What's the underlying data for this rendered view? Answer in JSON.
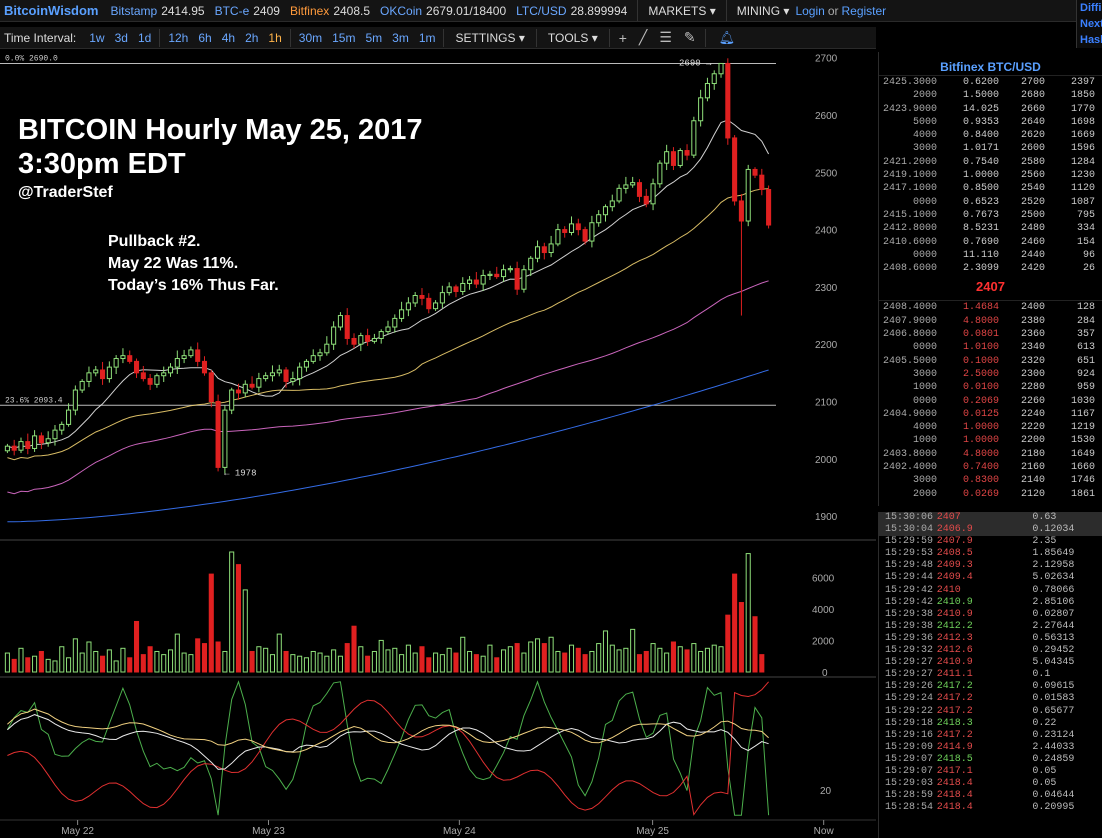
{
  "topbar": {
    "logo": "BitcoinWisdom",
    "exchanges": [
      {
        "name": "Bitstamp",
        "price": "2414.95",
        "active": false
      },
      {
        "name": "BTC-e",
        "price": "2409",
        "active": false
      },
      {
        "name": "Bitfinex",
        "price": "2408.5",
        "active": true
      },
      {
        "name": "OKCoin",
        "price": "2679.01/18400",
        "active": false
      },
      {
        "name": "LTC/USD",
        "price": "28.899994",
        "active": false
      }
    ],
    "markets_label": "MARKETS",
    "mining_label": "MINING",
    "login": "Login",
    "or": "or",
    "register": "Register",
    "side_items": [
      "Diffi",
      "Next",
      "Hash"
    ]
  },
  "toolbar": {
    "interval_label": "Time Interval:",
    "intervals": [
      {
        "label": "1w",
        "active": false
      },
      {
        "label": "3d",
        "active": false
      },
      {
        "label": "1d",
        "active": false
      },
      {
        "label": "12h",
        "active": false
      },
      {
        "label": "6h",
        "active": false
      },
      {
        "label": "4h",
        "active": false
      },
      {
        "label": "2h",
        "active": false
      },
      {
        "label": "1h",
        "active": true
      },
      {
        "label": "30m",
        "active": false
      },
      {
        "label": "15m",
        "active": false
      },
      {
        "label": "5m",
        "active": false
      },
      {
        "label": "3m",
        "active": false
      },
      {
        "label": "1m",
        "active": false
      }
    ],
    "settings_label": "SETTINGS",
    "tools_label": "TOOLS",
    "tool_icons": [
      "plus-icon",
      "line-tool-icon",
      "fib-tool-icon",
      "pen-tool-icon",
      "bell-icon"
    ]
  },
  "overlay": {
    "headline": "BITCOIN Hourly May 25, 2017",
    "headline2": "3:30pm EDT",
    "handle": "@TraderStef",
    "note": [
      "Pullback #2.",
      "May 22 Was 11%.",
      "Today’s 16% Thus Far."
    ]
  },
  "chart_data": [
    {
      "type": "candlestick",
      "title": "",
      "ylim": [
        1860,
        2710
      ],
      "y_ticks": [
        1900,
        2000,
        2100,
        2200,
        2300,
        2400,
        2500,
        2600,
        2700
      ],
      "x_labels": [
        "May 22",
        "May 23",
        "May 24",
        "May 25",
        "Now"
      ],
      "colors": {
        "up": "#8fe07a",
        "down": "#e02020",
        "ma1": "#e8e8e8",
        "ma2": "#f0d070",
        "ma3": "#e070d0",
        "ma4": "#3a78ff"
      },
      "closes": [
        2022,
        2015,
        2030,
        2018,
        2040,
        2028,
        2035,
        2050,
        2060,
        2085,
        2120,
        2135,
        2150,
        2155,
        2140,
        2160,
        2175,
        2180,
        2170,
        2150,
        2140,
        2130,
        2145,
        2150,
        2160,
        2175,
        2180,
        2190,
        2170,
        2150,
        2100,
        1985,
        2085,
        2120,
        2115,
        2130,
        2125,
        2140,
        2145,
        2150,
        2155,
        2135,
        2140,
        2160,
        2170,
        2180,
        2185,
        2200,
        2230,
        2250,
        2210,
        2200,
        2215,
        2205,
        2210,
        2222,
        2230,
        2245,
        2260,
        2272,
        2285,
        2280,
        2262,
        2272,
        2290,
        2300,
        2292,
        2306,
        2312,
        2305,
        2320,
        2322,
        2318,
        2330,
        2332,
        2296,
        2330,
        2350,
        2370,
        2360,
        2375,
        2400,
        2395,
        2410,
        2400,
        2380,
        2412,
        2426,
        2440,
        2450,
        2472,
        2478,
        2482,
        2458,
        2445,
        2480,
        2516,
        2536,
        2512,
        2538,
        2530,
        2590,
        2630,
        2655,
        2672,
        2690,
        2560,
        2450,
        2415,
        2505,
        2495,
        2470,
        2408
      ],
      "marks": [
        {
          "label": "0.0% 2690.0",
          "value": 2690
        },
        {
          "label": "23.6% 2093.4",
          "value": 2093.4
        },
        {
          "label": "2690 →",
          "value": 2690
        },
        {
          "label": "← 1978",
          "value": 1978
        }
      ]
    },
    {
      "type": "bar",
      "title": "Volume",
      "ylim": [
        0,
        7600
      ],
      "y_ticks": [
        0,
        2000,
        4000,
        6000
      ],
      "values": [
        1200,
        800,
        1500,
        900,
        1000,
        1300,
        800,
        700,
        1600,
        900,
        2100,
        1200,
        1900,
        1300,
        1000,
        1400,
        700,
        1500,
        900,
        3200,
        1100,
        1600,
        1300,
        1100,
        1400,
        2400,
        1200,
        1100,
        2100,
        1800,
        6200,
        1900,
        1300,
        7600,
        6800,
        5200,
        1300,
        1600,
        1500,
        1100,
        2400,
        1300,
        1100,
        1000,
        900,
        1300,
        1200,
        1000,
        1400,
        1000,
        1800,
        2900,
        1600,
        1000,
        1300,
        2000,
        1400,
        1500,
        1100,
        1700,
        1200,
        1600,
        900,
        1200,
        1100,
        1500,
        1200,
        2200,
        1300,
        1100,
        1000,
        1700,
        900,
        1400,
        1600,
        1800,
        1200,
        1900,
        2100,
        1800,
        2200,
        1300,
        1200,
        1700,
        1500,
        1100,
        1300,
        1800,
        2600,
        1700,
        1400,
        1500,
        2700,
        1100,
        1300,
        1800,
        1500,
        1200,
        1900,
        1600,
        1400,
        1800,
        1300,
        1500,
        1700,
        1600,
        3600,
        6200,
        4400,
        7500,
        3500,
        1100
      ]
    },
    {
      "type": "line",
      "title": "",
      "ylim": [
        0,
        100
      ],
      "y_ticks": [
        20
      ],
      "series_colors": [
        "#4caf4c",
        "#e03030",
        "#e8e8e8",
        "#f0d080"
      ]
    }
  ],
  "orderbook": {
    "title": "Bitfinex BTC/USD",
    "asks": [
      [
        "2425.3000",
        "0.6200",
        "2700",
        "2397"
      ],
      [
        "2000",
        "1.5000",
        "2680",
        "1850"
      ],
      [
        "2423.9000",
        "14.025",
        "2660",
        "1770"
      ],
      [
        "5000",
        "0.9353",
        "2640",
        "1698"
      ],
      [
        "4000",
        "0.8400",
        "2620",
        "1669"
      ],
      [
        "3000",
        "1.0171",
        "2600",
        "1596"
      ],
      [
        "2421.2000",
        "0.7540",
        "2580",
        "1284"
      ],
      [
        "2419.1000",
        "1.0000",
        "2560",
        "1230"
      ],
      [
        "2417.1000",
        "0.8500",
        "2540",
        "1120"
      ],
      [
        "0000",
        "0.6523",
        "2520",
        "1087"
      ],
      [
        "2415.1000",
        "0.7673",
        "2500",
        "795"
      ],
      [
        "2412.8000",
        "8.5231",
        "2480",
        "334"
      ],
      [
        "2410.6000",
        "0.7690",
        "2460",
        "154"
      ],
      [
        "0000",
        "11.110",
        "2440",
        "96"
      ],
      [
        "2408.6000",
        "2.3099",
        "2420",
        "26"
      ]
    ],
    "last_price": "2407",
    "bids": [
      [
        "2408.4000",
        "1.4684",
        "2400",
        "128"
      ],
      [
        "2407.9000",
        "4.8000",
        "2380",
        "284"
      ],
      [
        "2406.8000",
        "0.0801",
        "2360",
        "357"
      ],
      [
        "0000",
        "1.0100",
        "2340",
        "613"
      ],
      [
        "2405.5000",
        "0.1000",
        "2320",
        "651"
      ],
      [
        "3000",
        "2.5000",
        "2300",
        "924"
      ],
      [
        "1000",
        "0.0100",
        "2280",
        "959"
      ],
      [
        "0000",
        "0.2069",
        "2260",
        "1030"
      ],
      [
        "2404.9000",
        "0.0125",
        "2240",
        "1167"
      ],
      [
        "4000",
        "1.0000",
        "2220",
        "1219"
      ],
      [
        "1000",
        "1.0000",
        "2200",
        "1530"
      ],
      [
        "2403.8000",
        "4.8000",
        "2180",
        "1649"
      ],
      [
        "2402.4000",
        "0.7400",
        "2160",
        "1660"
      ],
      [
        "3000",
        "0.8300",
        "2140",
        "1746"
      ],
      [
        "2000",
        "0.0269",
        "2120",
        "1861"
      ]
    ]
  },
  "trades": [
    {
      "time": "15:30:06",
      "price": "2407",
      "amount": "0.63",
      "side": "s",
      "hl": true
    },
    {
      "time": "15:30:04",
      "price": "2406.9",
      "amount": "0.12034",
      "side": "s",
      "hl": true
    },
    {
      "time": "15:29:59",
      "price": "2407.9",
      "amount": "2.35",
      "side": "s",
      "hl": false
    },
    {
      "time": "15:29:53",
      "price": "2408.5",
      "amount": "1.85649",
      "side": "s",
      "hl": false
    },
    {
      "time": "15:29:48",
      "price": "2409.3",
      "amount": "2.12958",
      "side": "s",
      "hl": false
    },
    {
      "time": "15:29:44",
      "price": "2409.4",
      "amount": "5.02634",
      "side": "s",
      "hl": false
    },
    {
      "time": "15:29:42",
      "price": "2410",
      "amount": "0.78066",
      "side": "s",
      "hl": false
    },
    {
      "time": "15:29:42",
      "price": "2410.9",
      "amount": "2.85106",
      "side": "b",
      "hl": false
    },
    {
      "time": "15:29:38",
      "price": "2410.9",
      "amount": "0.02807",
      "side": "s",
      "hl": false
    },
    {
      "time": "15:29:38",
      "price": "2412.2",
      "amount": "2.27644",
      "side": "b",
      "hl": false
    },
    {
      "time": "15:29:36",
      "price": "2412.3",
      "amount": "0.56313",
      "side": "s",
      "hl": false
    },
    {
      "time": "15:29:32",
      "price": "2412.6",
      "amount": "0.29452",
      "side": "s",
      "hl": false
    },
    {
      "time": "15:29:27",
      "price": "2410.9",
      "amount": "5.04345",
      "side": "s",
      "hl": false
    },
    {
      "time": "15:29:27",
      "price": "2411.1",
      "amount": "0.1",
      "side": "s",
      "hl": false
    },
    {
      "time": "15:29:26",
      "price": "2417.2",
      "amount": "0.09615",
      "side": "b",
      "hl": false
    },
    {
      "time": "15:29:24",
      "price": "2417.2",
      "amount": "0.01583",
      "side": "s",
      "hl": false
    },
    {
      "time": "15:29:22",
      "price": "2417.2",
      "amount": "0.65677",
      "side": "s",
      "hl": false
    },
    {
      "time": "15:29:18",
      "price": "2418.3",
      "amount": "0.22",
      "side": "b",
      "hl": false
    },
    {
      "time": "15:29:16",
      "price": "2417.2",
      "amount": "0.23124",
      "side": "s",
      "hl": false
    },
    {
      "time": "15:29:09",
      "price": "2414.9",
      "amount": "2.44033",
      "side": "s",
      "hl": false
    },
    {
      "time": "15:29:07",
      "price": "2418.5",
      "amount": "0.24859",
      "side": "b",
      "hl": false
    },
    {
      "time": "15:29:07",
      "price": "2417.1",
      "amount": "0.05",
      "side": "s",
      "hl": false
    },
    {
      "time": "15:29:03",
      "price": "2418.4",
      "amount": "0.05",
      "side": "s",
      "hl": false
    },
    {
      "time": "15:28:59",
      "price": "2418.4",
      "amount": "0.04644",
      "side": "s",
      "hl": false
    },
    {
      "time": "15:28:54",
      "price": "2418.4",
      "amount": "0.20995",
      "side": "s",
      "hl": false
    }
  ]
}
